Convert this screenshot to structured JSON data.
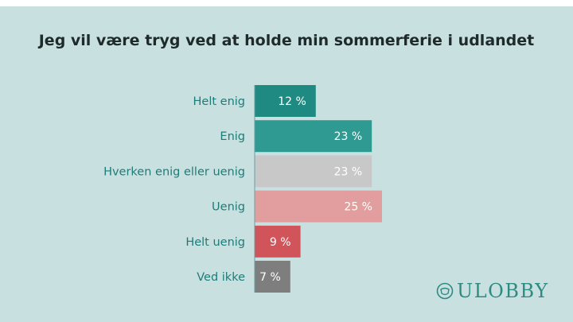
{
  "brand": {
    "name": "ULOBBY",
    "icon": "ulobby-logo-icon",
    "color": "#2e8b82"
  },
  "chart_data": {
    "type": "bar",
    "orientation": "horizontal",
    "title": "Jeg vil være tryg ved at holde min sommerferie i udlandet",
    "categories": [
      "Helt enig",
      "Enig",
      "Hverken enig eller uenig",
      "Uenig",
      "Helt uenig",
      "Ved ikke"
    ],
    "values": [
      12,
      23,
      23,
      25,
      9,
      7
    ],
    "value_labels": [
      "12 %",
      "23 %",
      "23 %",
      "25 %",
      "9 %",
      "7 %"
    ],
    "colors": [
      "#1e8a82",
      "#2e9a92",
      "#c8c8c8",
      "#e29e9e",
      "#d0545a",
      "#7e7e7e"
    ],
    "xlim": [
      0,
      25
    ],
    "unit": "%",
    "grid": false,
    "legend": "none"
  }
}
